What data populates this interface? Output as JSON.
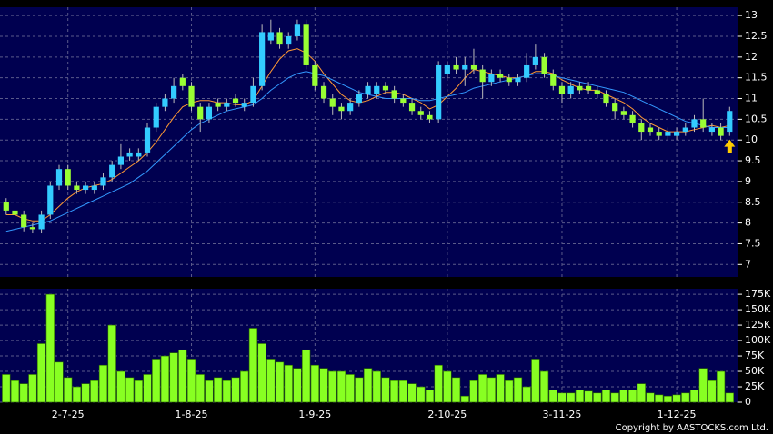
{
  "chart_data": [
    {
      "type": "candlestick",
      "up_color": "#33ccff",
      "down_color": "#99ff33",
      "open": [
        8.5,
        8.3,
        8.2,
        7.9,
        7.85,
        8.2,
        8.9,
        9.3,
        8.9,
        8.8,
        8.8,
        8.9,
        9.1,
        9.4,
        9.6,
        9.6,
        9.7,
        10.3,
        10.8,
        11.0,
        11.5,
        11.3,
        10.8,
        10.5,
        10.9,
        10.8,
        11.0,
        10.8,
        10.9,
        11.3,
        12.4,
        12.6,
        12.3,
        12.5,
        12.8,
        11.8,
        11.3,
        11.0,
        10.8,
        10.7,
        10.9,
        11.1,
        11.1,
        11.3,
        11.2,
        11.0,
        10.9,
        10.7,
        10.6,
        10.5,
        11.6,
        11.8,
        11.7,
        11.8,
        11.7,
        11.4,
        11.6,
        11.5,
        11.4,
        11.5,
        11.8,
        12.0,
        11.6,
        11.3,
        11.1,
        11.3,
        11.3,
        11.2,
        11.1,
        10.9,
        10.7,
        10.6,
        10.4,
        10.3,
        10.2,
        10.1,
        10.1,
        10.2,
        10.3,
        10.5,
        10.2,
        10.3,
        10.2
      ],
      "high": [
        8.6,
        8.4,
        8.3,
        8.0,
        8.3,
        9.0,
        9.4,
        9.4,
        9.0,
        9.0,
        9.0,
        9.2,
        9.5,
        9.9,
        9.8,
        9.8,
        10.4,
        10.9,
        11.1,
        11.5,
        11.6,
        11.4,
        10.9,
        10.9,
        11.0,
        11.0,
        11.1,
        11.0,
        11.5,
        12.8,
        12.9,
        12.7,
        12.6,
        12.9,
        12.9,
        11.9,
        11.4,
        11.1,
        10.9,
        11.0,
        11.2,
        11.4,
        11.4,
        11.4,
        11.3,
        11.1,
        11.0,
        10.8,
        10.7,
        11.9,
        11.9,
        12.0,
        12.0,
        12.2,
        11.8,
        11.7,
        11.7,
        11.6,
        11.6,
        12.1,
        12.3,
        12.1,
        11.7,
        11.4,
        11.4,
        11.4,
        11.4,
        11.3,
        11.2,
        11.0,
        10.8,
        10.7,
        10.5,
        10.4,
        10.3,
        10.3,
        10.3,
        10.4,
        10.6,
        11.0,
        10.4,
        10.4,
        10.8
      ],
      "low": [
        8.2,
        8.1,
        7.8,
        7.75,
        7.75,
        8.1,
        8.8,
        8.8,
        8.7,
        8.7,
        8.7,
        8.8,
        9.0,
        9.3,
        9.5,
        9.5,
        9.6,
        10.2,
        10.7,
        10.9,
        11.2,
        10.7,
        10.2,
        10.4,
        10.7,
        10.7,
        10.8,
        10.7,
        10.8,
        11.2,
        12.3,
        12.2,
        12.2,
        12.4,
        11.7,
        11.2,
        10.9,
        10.6,
        10.5,
        10.6,
        10.8,
        11.0,
        11.0,
        11.1,
        10.9,
        10.8,
        10.6,
        10.5,
        10.4,
        10.4,
        11.5,
        11.6,
        11.3,
        11.6,
        11.0,
        11.3,
        11.4,
        11.3,
        11.3,
        11.4,
        11.7,
        11.5,
        11.2,
        10.9,
        11.0,
        11.1,
        11.1,
        11.0,
        10.8,
        10.5,
        10.5,
        10.3,
        10.0,
        10.1,
        10.0,
        10.0,
        10.0,
        10.1,
        10.2,
        10.2,
        10.1,
        10.0,
        10.1
      ],
      "close": [
        8.3,
        8.2,
        7.9,
        7.85,
        8.2,
        8.9,
        9.3,
        8.9,
        8.8,
        8.9,
        8.9,
        9.1,
        9.4,
        9.6,
        9.7,
        9.7,
        10.3,
        10.8,
        11.0,
        11.3,
        11.3,
        10.8,
        10.5,
        10.8,
        10.8,
        10.9,
        10.9,
        10.9,
        11.3,
        12.6,
        12.6,
        12.3,
        12.5,
        12.8,
        11.8,
        11.3,
        11.0,
        10.8,
        10.7,
        10.9,
        11.1,
        11.3,
        11.3,
        11.2,
        11.0,
        10.9,
        10.7,
        10.6,
        10.5,
        11.8,
        11.8,
        11.7,
        11.8,
        11.7,
        11.4,
        11.6,
        11.5,
        11.4,
        11.5,
        11.8,
        12.0,
        11.6,
        11.3,
        11.1,
        11.3,
        11.2,
        11.2,
        11.1,
        10.9,
        10.7,
        10.6,
        10.4,
        10.2,
        10.2,
        10.1,
        10.2,
        10.2,
        10.3,
        10.5,
        10.3,
        10.3,
        10.1,
        10.7
      ],
      "moving_averages": [
        {
          "color": "#ff9933",
          "values": [
            8.2,
            8.2,
            8.1,
            8.05,
            8.05,
            8.2,
            8.4,
            8.6,
            8.75,
            8.85,
            8.9,
            8.95,
            9.05,
            9.2,
            9.35,
            9.5,
            9.7,
            9.95,
            10.25,
            10.55,
            10.8,
            10.9,
            10.95,
            10.95,
            10.9,
            10.9,
            10.85,
            10.85,
            10.95,
            11.3,
            11.65,
            11.95,
            12.15,
            12.2,
            12.1,
            11.9,
            11.6,
            11.35,
            11.1,
            10.95,
            10.9,
            10.95,
            11.05,
            11.15,
            11.15,
            11.1,
            11.0,
            10.9,
            10.75,
            10.85,
            11.05,
            11.25,
            11.5,
            11.7,
            11.65,
            11.6,
            11.55,
            11.5,
            11.5,
            11.55,
            11.65,
            11.65,
            11.6,
            11.45,
            11.35,
            11.25,
            11.2,
            11.2,
            11.1,
            11.0,
            10.9,
            10.75,
            10.55,
            10.4,
            10.3,
            10.2,
            10.2,
            10.2,
            10.25,
            10.3,
            10.35,
            10.3,
            10.35
          ]
        },
        {
          "color": "#3399ff",
          "values": [
            7.8,
            7.85,
            7.9,
            7.95,
            8.0,
            8.05,
            8.15,
            8.25,
            8.35,
            8.45,
            8.55,
            8.65,
            8.75,
            8.85,
            8.95,
            9.1,
            9.25,
            9.45,
            9.65,
            9.85,
            10.05,
            10.25,
            10.4,
            10.5,
            10.6,
            10.7,
            10.75,
            10.8,
            10.85,
            11.0,
            11.2,
            11.35,
            11.5,
            11.6,
            11.65,
            11.6,
            11.55,
            11.45,
            11.35,
            11.25,
            11.15,
            11.1,
            11.05,
            11.0,
            11.0,
            11.0,
            11.0,
            10.95,
            10.95,
            11.0,
            11.05,
            11.1,
            11.15,
            11.25,
            11.3,
            11.35,
            11.4,
            11.45,
            11.5,
            11.55,
            11.6,
            11.6,
            11.55,
            11.5,
            11.45,
            11.4,
            11.35,
            11.3,
            11.25,
            11.2,
            11.15,
            11.05,
            10.95,
            10.85,
            10.75,
            10.65,
            10.55,
            10.45,
            10.4,
            10.35,
            10.3,
            10.3,
            10.3
          ]
        }
      ],
      "ylim": [
        6.7,
        13.2
      ],
      "yticks": [
        7,
        7.5,
        8,
        8.5,
        9,
        9.5,
        10,
        10.5,
        11,
        11.5,
        12,
        12.5,
        13
      ],
      "grid": true
    },
    {
      "type": "bar",
      "color": "#88ff22",
      "values": [
        45000,
        35000,
        30000,
        45000,
        95000,
        175000,
        65000,
        40000,
        25000,
        30000,
        35000,
        60000,
        125000,
        50000,
        40000,
        35000,
        45000,
        70000,
        75000,
        80000,
        85000,
        70000,
        45000,
        35000,
        40000,
        35000,
        40000,
        50000,
        120000,
        95000,
        70000,
        65000,
        60000,
        55000,
        85000,
        60000,
        55000,
        50000,
        50000,
        45000,
        40000,
        55000,
        50000,
        40000,
        35000,
        35000,
        30000,
        25000,
        20000,
        60000,
        50000,
        40000,
        10000,
        35000,
        45000,
        40000,
        45000,
        35000,
        40000,
        25000,
        70000,
        50000,
        20000,
        15000,
        15000,
        20000,
        18000,
        15000,
        20000,
        15000,
        20000,
        20000,
        30000,
        15000,
        12000,
        10000,
        12000,
        15000,
        20000,
        55000,
        35000,
        50000,
        15000
      ],
      "xlim": [
        -0.7,
        83
      ],
      "xticks": [
        {
          "value": 7,
          "label": "2-7-25"
        },
        {
          "value": 21,
          "label": "1-8-25"
        },
        {
          "value": 35,
          "label": "1-9-25"
        },
        {
          "value": 50,
          "label": "2-10-25"
        },
        {
          "value": 63,
          "label": "3-11-25"
        },
        {
          "value": 76,
          "label": "1-12-25"
        }
      ],
      "ylim": [
        0,
        184000
      ],
      "yticks": [
        0,
        {
          "value": 25000,
          "label": "25K"
        },
        {
          "value": 50000,
          "label": "50K"
        },
        {
          "value": 75000,
          "label": "75K"
        },
        {
          "value": 100000,
          "label": "100K"
        },
        {
          "value": 125000,
          "label": "125K"
        },
        {
          "value": 150000,
          "label": "150K"
        },
        {
          "value": 175000,
          "label": "175K"
        }
      ],
      "grid": true
    }
  ],
  "footer": "Copyright by AASTOCKS.com Ltd."
}
